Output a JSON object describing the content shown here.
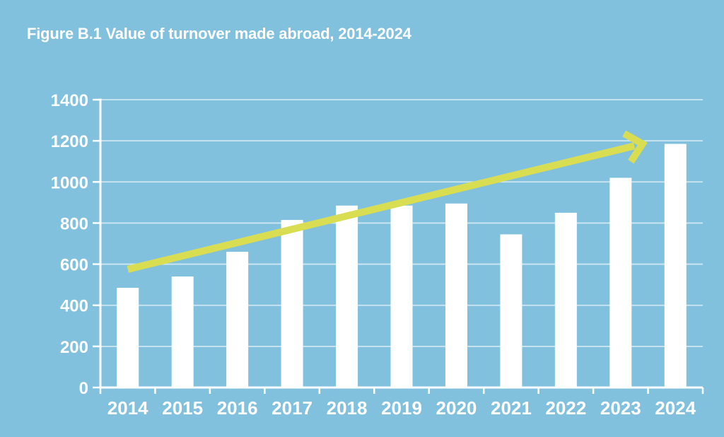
{
  "figure": {
    "title": "Figure B.1 Value of turnover made abroad, 2014-2024"
  },
  "colors": {
    "background": "#81c1dd",
    "bar": "#ffffff",
    "axis": "#ffffff",
    "label": "#ffffff",
    "gridline": "rgba(255,255,255,0.62)",
    "arrow": "#d8dd52"
  },
  "chart_data": {
    "type": "bar",
    "title": "Figure B.1 Value of turnover made abroad, 2014-2024",
    "categories": [
      "2014",
      "2015",
      "2016",
      "2017",
      "2018",
      "2019",
      "2020",
      "2021",
      "2022",
      "2023",
      "2024"
    ],
    "values": [
      485,
      540,
      660,
      815,
      885,
      885,
      895,
      745,
      850,
      1020,
      1185
    ],
    "xlabel": "",
    "ylabel": "",
    "ylim": [
      0,
      1400
    ],
    "ytick_step": 200,
    "yticks": [
      0,
      200,
      400,
      600,
      800,
      1000,
      1200,
      1400
    ],
    "grid": true,
    "legend": false,
    "annotations": [
      {
        "type": "trend-arrow",
        "description": "yellow-green upward trend arrow spanning 2014 to 2024",
        "from": {
          "category_frac": 0.5,
          "value": 575
        },
        "to": {
          "category_frac": 9.9,
          "value": 1185
        }
      }
    ]
  }
}
